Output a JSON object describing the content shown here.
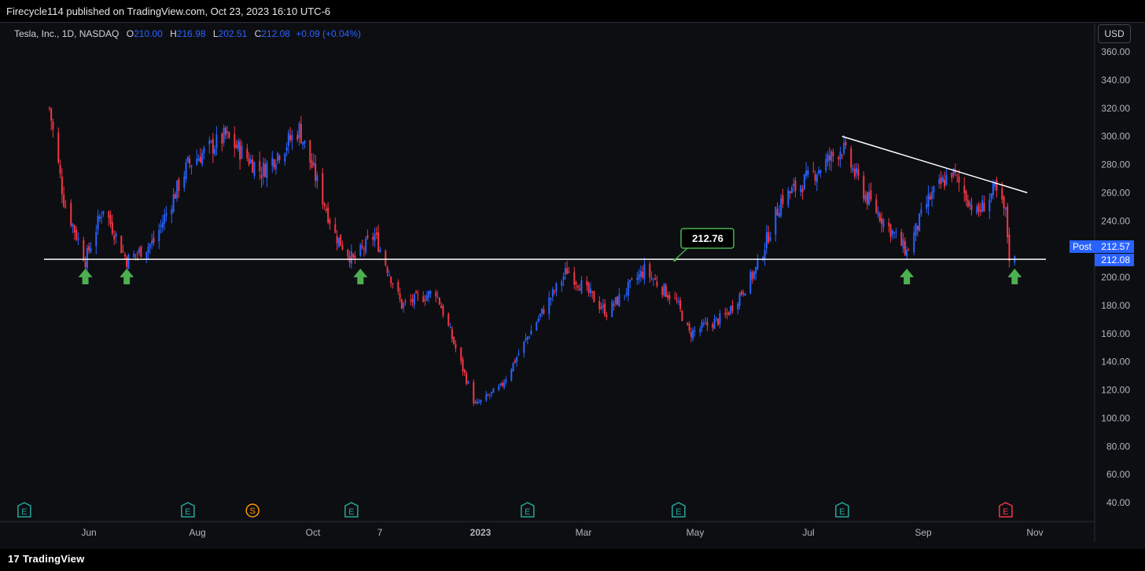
{
  "header": {
    "published_text": "Firecycle114 published on TradingView.com, Oct 23, 2023 16:10 UTC-6"
  },
  "legend": {
    "symbol": "Tesla, Inc., 1D, NASDAQ",
    "o_label": "O",
    "o_value": "210.00",
    "h_label": "H",
    "h_value": "216.98",
    "l_label": "L",
    "l_value": "202.51",
    "c_label": "C",
    "c_value": "212.08",
    "change": "+0.09 (+0.04%)"
  },
  "currency_button": "USD",
  "price_tags": {
    "post_label": "Post",
    "post_value": "212.57",
    "last_value": "212.08"
  },
  "annotation": {
    "support_value": "212.76"
  },
  "footer": {
    "brand": "TradingView",
    "brand_glyph": "17"
  },
  "colors": {
    "up": "#2962ff",
    "down": "#f23645",
    "arrow": "#4caf50",
    "label_border": "#4caf50",
    "post_tag": "#2962ff",
    "earnings": "#26a69a",
    "split": "#ff9800"
  },
  "chart_data": {
    "type": "candlestick",
    "symbol": "Tesla, Inc.",
    "interval": "1D",
    "exchange": "NASDAQ",
    "y_ticks": [
      360,
      340,
      320,
      300,
      280,
      260,
      240,
      220,
      200,
      180,
      160,
      140,
      120,
      100,
      80,
      60,
      40
    ],
    "y_tick_labels": [
      "360.00",
      "340.00",
      "320.00",
      "300.00",
      "280.00",
      "260.00",
      "240.00",
      "220.00",
      "200.00",
      "180.00",
      "160.00",
      "140.00",
      "120.00",
      "100.00",
      "80.00",
      "60.00",
      "40.00"
    ],
    "ylim": [
      29,
      372
    ],
    "x_ticks": [
      "Jun",
      "Aug",
      "Oct",
      "7",
      "2023",
      "Mar",
      "May",
      "Jul",
      "Sep",
      "Nov"
    ],
    "trend_series": [
      {
        "d": "2022-05-04",
        "c": 320
      },
      {
        "d": "2022-05-12",
        "c": 255
      },
      {
        "d": "2022-05-24",
        "c": 212
      },
      {
        "d": "2022-06-03",
        "c": 250
      },
      {
        "d": "2022-06-16",
        "c": 212
      },
      {
        "d": "2022-07-01",
        "c": 225
      },
      {
        "d": "2022-07-20",
        "c": 280
      },
      {
        "d": "2022-08-10",
        "c": 300
      },
      {
        "d": "2022-08-30",
        "c": 275
      },
      {
        "d": "2022-09-20",
        "c": 305
      },
      {
        "d": "2022-10-10",
        "c": 230
      },
      {
        "d": "2022-10-20",
        "c": 212
      },
      {
        "d": "2022-11-01",
        "c": 230
      },
      {
        "d": "2022-11-16",
        "c": 180
      },
      {
        "d": "2022-12-05",
        "c": 190
      },
      {
        "d": "2022-12-27",
        "c": 109
      },
      {
        "d": "2023-01-10",
        "c": 122
      },
      {
        "d": "2023-01-26",
        "c": 160
      },
      {
        "d": "2023-02-16",
        "c": 205
      },
      {
        "d": "2023-03-10",
        "c": 175
      },
      {
        "d": "2023-03-31",
        "c": 205
      },
      {
        "d": "2023-04-18",
        "c": 182
      },
      {
        "d": "2023-04-25",
        "c": 160
      },
      {
        "d": "2023-05-15",
        "c": 172
      },
      {
        "d": "2023-06-01",
        "c": 205
      },
      {
        "d": "2023-06-15",
        "c": 255
      },
      {
        "d": "2023-06-30",
        "c": 270
      },
      {
        "d": "2023-07-19",
        "c": 292
      },
      {
        "d": "2023-08-01",
        "c": 258
      },
      {
        "d": "2023-08-24",
        "c": 218
      },
      {
        "d": "2023-09-05",
        "c": 255
      },
      {
        "d": "2023-09-18",
        "c": 275
      },
      {
        "d": "2023-10-02",
        "c": 245
      },
      {
        "d": "2023-10-12",
        "c": 262
      },
      {
        "d": "2023-10-18",
        "c": 245
      },
      {
        "d": "2023-10-20",
        "c": 215
      },
      {
        "d": "2023-10-23",
        "c": 212.08
      }
    ],
    "horizontal_line": 212.76,
    "trendline": [
      {
        "d": "2023-07-19",
        "price": 300
      },
      {
        "d": "2023-10-30",
        "price": 260
      }
    ],
    "arrows": [
      {
        "d": "2022-05-24",
        "price": 212
      },
      {
        "d": "2022-06-16",
        "price": 212
      },
      {
        "d": "2022-10-24",
        "price": 212
      },
      {
        "d": "2023-08-24",
        "price": 212
      },
      {
        "d": "2023-10-23",
        "price": 212
      }
    ],
    "events": [
      {
        "d": "2022-04-20",
        "type": "E"
      },
      {
        "d": "2022-07-20",
        "type": "E"
      },
      {
        "d": "2022-08-25",
        "type": "S"
      },
      {
        "d": "2022-10-19",
        "type": "E"
      },
      {
        "d": "2023-01-25",
        "type": "E"
      },
      {
        "d": "2023-04-19",
        "type": "E"
      },
      {
        "d": "2023-07-19",
        "type": "E"
      },
      {
        "d": "2023-10-18",
        "type": "E"
      }
    ]
  }
}
